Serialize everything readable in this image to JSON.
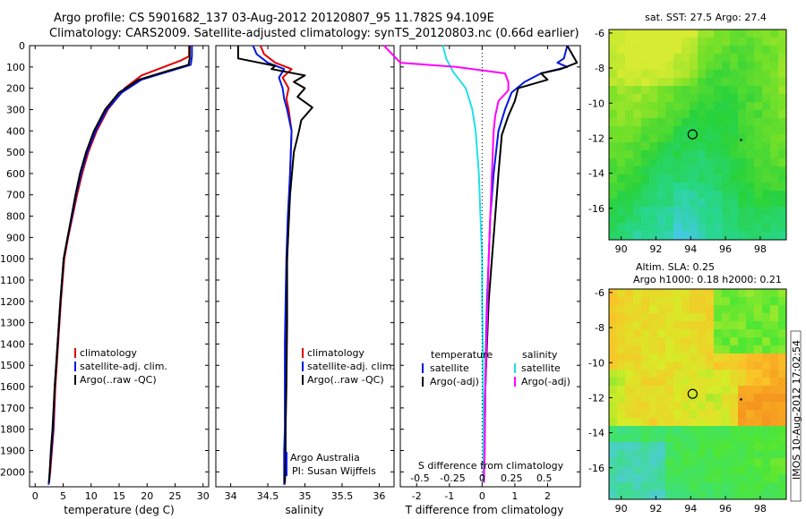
{
  "header": {
    "line1": "Argo profile: CS 5901682_137 03-Aug-2012 20120807_95 11.782S 94.109E",
    "line2": "Climatology: CARS2009. Satellite-adjusted climatology: synTS_20120803.nc (0.66d earlier)"
  },
  "colors": {
    "climatology": "#e00000",
    "satellite": "#0018e0",
    "argo": "#000000",
    "sal_satellite": "#22e0e8",
    "sal_argo": "#ff00ff"
  },
  "stamp": "IMOS 10-Aug-2012 17:02:54",
  "chart_data": [
    {
      "id": "temperature",
      "type": "line",
      "xlabel": "temperature (deg C)",
      "xlim": [
        -1,
        31
      ],
      "xticks": [
        0,
        5,
        10,
        15,
        20,
        25,
        30
      ],
      "ylim": [
        2070,
        0
      ],
      "yticks": [
        0,
        100,
        200,
        300,
        400,
        500,
        600,
        700,
        800,
        900,
        1000,
        1100,
        1200,
        1300,
        1400,
        1500,
        1600,
        1700,
        1800,
        1900,
        2000
      ],
      "legend": [
        "climatology",
        "satellite-adj. clim.",
        "Argo(..raw -QC)"
      ],
      "series": [
        {
          "name": "climatology",
          "color_key": "climatology",
          "x": [
            27.5,
            27.5,
            26,
            23,
            19,
            16,
            13,
            11,
            9.5,
            8.4,
            7.5,
            6.7,
            5.9,
            5.2,
            4.6,
            4.1,
            3.6,
            3.3,
            3.0,
            2.7,
            2.4
          ],
          "y": [
            0,
            50,
            70,
            100,
            140,
            200,
            300,
            400,
            500,
            600,
            700,
            800,
            900,
            1000,
            1200,
            1400,
            1600,
            1800,
            1900,
            2000,
            2060
          ]
        },
        {
          "name": "satellite-adj. clim.",
          "color_key": "satellite",
          "x": [
            28,
            28,
            27.8,
            24,
            19,
            15.5,
            12.8,
            10.8,
            9.3,
            8.2,
            7.3,
            6.6,
            5.8,
            5.1,
            4.5,
            4.0,
            3.5,
            3.2,
            2.9,
            2.6,
            2.4
          ],
          "y": [
            0,
            50,
            90,
            120,
            160,
            220,
            300,
            400,
            500,
            600,
            700,
            800,
            900,
            1000,
            1200,
            1400,
            1600,
            1800,
            1900,
            2000,
            2060
          ]
        },
        {
          "name": "Argo(..raw -QC)",
          "color_key": "argo",
          "x": [
            27.6,
            27.6,
            27.4,
            23.5,
            18.5,
            15,
            12.5,
            10.5,
            9.1,
            8.0,
            7.2,
            6.5,
            5.8,
            5.1,
            4.5,
            4.0,
            3.5,
            3.1,
            2.8,
            2.6,
            2.5
          ],
          "y": [
            0,
            60,
            90,
            120,
            160,
            220,
            300,
            400,
            500,
            600,
            700,
            800,
            900,
            1000,
            1200,
            1400,
            1600,
            1800,
            1900,
            2000,
            2050
          ]
        }
      ]
    },
    {
      "id": "salinity",
      "type": "line",
      "xlabel": "salinity",
      "xlim": [
        33.8,
        36.2
      ],
      "xticks": [
        34,
        34.5,
        35,
        35.5,
        36
      ],
      "ylim": [
        2070,
        0
      ],
      "legend": [
        "climatology",
        "satellite-adj. clim.",
        "Argo(..raw -QC)"
      ],
      "credit": [
        "Argo Australia",
        "PI: Susan Wijffels"
      ],
      "series": [
        {
          "name": "climatology",
          "color_key": "climatology",
          "x": [
            34.4,
            34.45,
            34.6,
            34.82,
            34.7,
            34.78,
            34.75,
            34.78,
            34.82,
            34.8,
            34.78,
            34.76,
            34.75,
            34.74,
            34.74,
            34.74,
            34.73,
            34.73,
            34.73
          ],
          "y": [
            0,
            40,
            80,
            110,
            150,
            200,
            250,
            300,
            400,
            600,
            800,
            1000,
            1200,
            1400,
            1600,
            1800,
            1900,
            2000,
            2060
          ]
        },
        {
          "name": "satellite-adj. clim.",
          "color_key": "satellite",
          "x": [
            34.3,
            34.35,
            34.5,
            34.72,
            34.65,
            34.7,
            34.72,
            34.76,
            34.82,
            34.8,
            34.77,
            34.75,
            34.74,
            34.73,
            34.73,
            34.73,
            34.72,
            34.72,
            34.72
          ],
          "y": [
            0,
            40,
            80,
            110,
            150,
            200,
            250,
            300,
            400,
            600,
            800,
            1000,
            1200,
            1400,
            1600,
            1800,
            1900,
            2000,
            2060
          ]
        },
        {
          "name": "Argo(..raw -QC)",
          "color_key": "argo",
          "x": [
            34.1,
            34.1,
            34.6,
            34.55,
            35.0,
            34.85,
            35.0,
            34.9,
            35.1,
            34.95,
            34.92,
            34.85,
            34.8,
            34.76,
            34.76,
            34.75,
            34.74,
            34.74,
            34.73
          ],
          "y": [
            0,
            60,
            95,
            110,
            140,
            170,
            200,
            240,
            290,
            350,
            400,
            500,
            700,
            1000,
            1300,
            1600,
            1800,
            1950,
            2050
          ]
        }
      ]
    },
    {
      "id": "difference",
      "type": "line",
      "xlabel": "T difference from climatology",
      "xlabel_top": "S difference from climatology",
      "xlim": [
        -2.5,
        3.0
      ],
      "xticks": [
        -2,
        -1,
        0,
        1,
        2
      ],
      "sticks_label": [
        "-0.5",
        "-0.25",
        "0",
        "0.25",
        "0.5"
      ],
      "sticks_pos": [
        -1.9,
        -0.9,
        0.0,
        0.9,
        1.9
      ],
      "ylim": [
        2070,
        0
      ],
      "legend_temperature": {
        "title": "temperature",
        "items": [
          "satellite",
          "Argo(-adj)"
        ]
      },
      "legend_salinity": {
        "title": "salinity",
        "items": [
          "satellite",
          "Argo(-adj)"
        ]
      },
      "series": [
        {
          "name": "satellite",
          "color_key": "satellite",
          "x": [
            2.6,
            2.5,
            2.3,
            2.6,
            1.8,
            1.3,
            0.9,
            0.7,
            0.5,
            0.35,
            0.25,
            0.2,
            0.15,
            0.12,
            0.1,
            0.08,
            0.06,
            0.05
          ],
          "y": [
            0,
            60,
            80,
            100,
            130,
            170,
            220,
            300,
            400,
            600,
            800,
            1000,
            1200,
            1400,
            1600,
            1800,
            1950,
            2050
          ]
        },
        {
          "name": "Argo(-adj)",
          "color_key": "argo",
          "x": [
            2.6,
            2.9,
            2.4,
            1.8,
            2.0,
            1.1,
            1.0,
            0.8,
            0.6,
            0.5,
            0.4,
            0.3,
            0.2,
            0.15,
            0.1,
            0.08,
            0.05,
            0.05
          ],
          "y": [
            0,
            80,
            110,
            130,
            160,
            200,
            260,
            330,
            420,
            600,
            800,
            1000,
            1200,
            1400,
            1600,
            1800,
            1950,
            2050
          ]
        },
        {
          "name": "satellite",
          "color_key": "sal_satellite",
          "x": [
            -1.2,
            -1.1,
            -0.9,
            -0.5,
            -0.3,
            -0.2,
            -0.15,
            -0.1,
            -0.05,
            0.0,
            0.0,
            0.02,
            0.03,
            0.04,
            0.04,
            0.04
          ],
          "y": [
            0,
            60,
            120,
            200,
            300,
            400,
            500,
            600,
            800,
            1000,
            1200,
            1400,
            1600,
            1800,
            1950,
            2050
          ]
        },
        {
          "name": "Argo(-adj)",
          "color_key": "sal_argo",
          "x": [
            -3.0,
            -2.5,
            -0.8,
            0.7,
            0.8,
            0.8,
            0.5,
            0.4,
            0.35,
            0.3,
            0.25,
            0.2,
            0.15,
            0.1,
            0.08,
            0.05
          ],
          "y": [
            0,
            80,
            100,
            130,
            170,
            210,
            260,
            330,
            400,
            600,
            800,
            1000,
            1300,
            1600,
            1900,
            2050
          ]
        }
      ]
    },
    {
      "id": "sst-map",
      "type": "heatmap",
      "title": "sat. SST: 27.5 Argo: 27.4",
      "xlim": [
        89.3,
        99.5
      ],
      "ylim": [
        -17.8,
        -5.8
      ],
      "xticks": [
        90,
        92,
        94,
        96,
        98
      ],
      "yticks": [
        -6,
        -8,
        -10,
        -12,
        -14,
        -16
      ],
      "marker": {
        "lon": 94.109,
        "lat": -11.782
      }
    },
    {
      "id": "sla-map",
      "type": "heatmap",
      "title_line1": "Altim. SLA: 0.25",
      "title_line2": "Argo h1000: 0.18 h2000: 0.21",
      "xlim": [
        89.3,
        99.5
      ],
      "ylim": [
        -17.8,
        -5.8
      ],
      "xticks": [
        90,
        92,
        94,
        96,
        98
      ],
      "yticks": [
        -6,
        -8,
        -10,
        -12,
        -14,
        -16
      ],
      "marker": {
        "lon": 94.109,
        "lat": -11.782
      }
    }
  ]
}
